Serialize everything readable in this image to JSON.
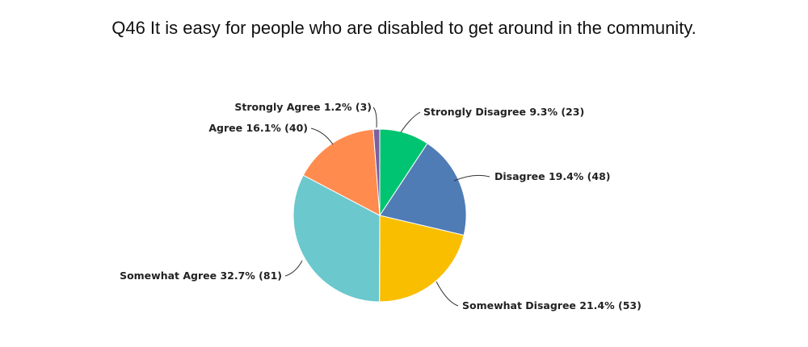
{
  "chart_data": {
    "type": "pie",
    "title": "Q46 It is easy for people who are disabled to get around in the community.",
    "slices": [
      {
        "label": "Strongly Disagree",
        "percent": 9.3,
        "count": 23,
        "display": "Strongly Disagree 9.3% (23)",
        "color": "#00c471"
      },
      {
        "label": "Disagree",
        "percent": 19.4,
        "count": 48,
        "display": "Disagree 19.4% (48)",
        "color": "#507cb6"
      },
      {
        "label": "Somewhat Disagree",
        "percent": 21.4,
        "count": 53,
        "display": "Somewhat Disagree 21.4% (53)",
        "color": "#f9be00"
      },
      {
        "label": "Somewhat Agree",
        "percent": 32.7,
        "count": 81,
        "display": "Somewhat Agree 32.7% (81)",
        "color": "#6bc8cd"
      },
      {
        "label": "Agree",
        "percent": 16.1,
        "count": 40,
        "display": "Agree 16.1% (40)",
        "color": "#ff8b4f"
      },
      {
        "label": "Strongly Agree",
        "percent": 1.2,
        "count": 3,
        "display": "Strongly Agree 1.2% (3)",
        "color": "#7d5fa0"
      }
    ]
  }
}
